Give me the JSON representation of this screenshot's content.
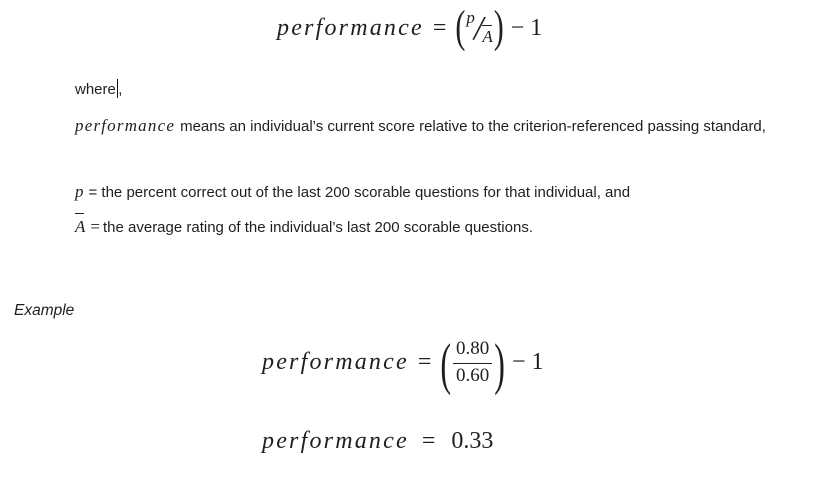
{
  "page": {
    "background": "#ffffff",
    "text_color": "#1f1f1f"
  },
  "formula_main": {
    "lhs": "performance",
    "equals": "=",
    "open_paren": "(",
    "numerator": "p",
    "slash": "/",
    "denominator": "A",
    "close_paren": ")",
    "tail": "− 1"
  },
  "where_line": {
    "text_before_cursor": "where",
    "text_after_cursor": ","
  },
  "definitions": [
    {
      "term": "performance",
      "text": "means an individual’s current score relative to the criterion-referenced passing standard,"
    },
    {
      "term": "p",
      "text": "= the percent correct out of the last 200 scorable questions for that individual, and"
    },
    {
      "term": "A",
      "equals": "=",
      "text": "the average rating of the individual’s last 200 scorable questions."
    }
  ],
  "example_section": {
    "label": "Example"
  },
  "formula_example": {
    "lhs": "performance",
    "equals": "=",
    "open_paren": "(",
    "numerator": "0.80",
    "denominator": "0.60",
    "close_paren": ")",
    "tail": "− 1"
  },
  "formula_result": {
    "lhs": "performance",
    "equals": "=",
    "value": "0.33"
  }
}
